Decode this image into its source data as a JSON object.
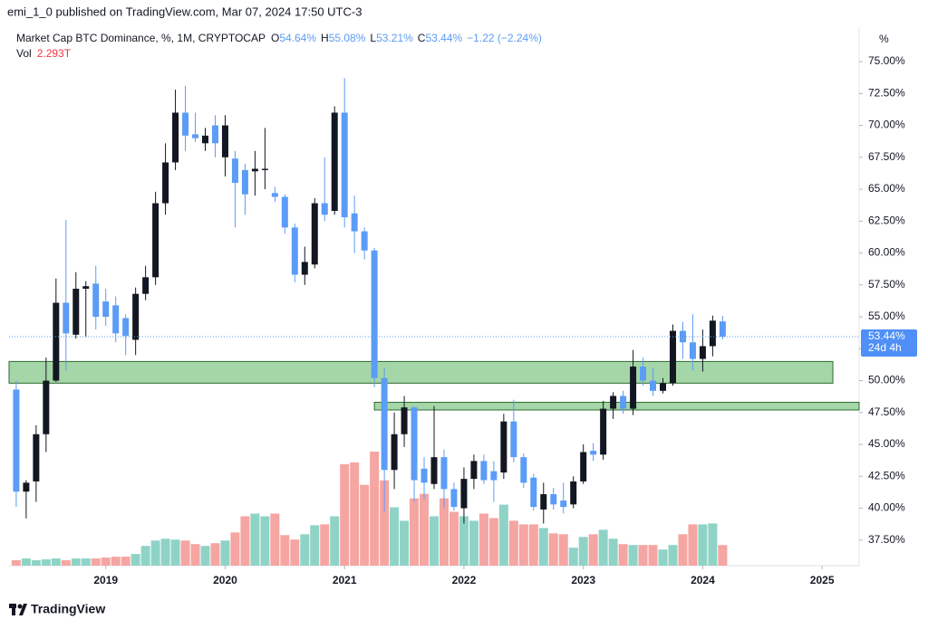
{
  "header": "emi_1_0 published on TradingView.com, Mar 07, 2024 17:50 UTC-3",
  "footer": {
    "brand": "TradingView"
  },
  "chart_data": {
    "type": "candlestick",
    "title": "Market Cap BTC Dominance, %, 1M, CRYPTOCAP",
    "legend_keys": [
      "O",
      "H",
      "L",
      "C"
    ],
    "legend_values": [
      "54.64%",
      "55.08%",
      "53.21%",
      "53.44%"
    ],
    "change": "−1.22 (−2.24%)",
    "volume_name": "Vol",
    "volume_label": "2.293T",
    "axis_unit": "%",
    "countdown": "24d 4h",
    "last_price": {
      "value": 53.44,
      "label": "53.44%"
    },
    "up_color": "#131722",
    "down_color": "#5b9cf6",
    "volume_up_color": "#8fd3c6",
    "volume_down_color": "#f5a5a2",
    "x": [
      2018.25,
      2018.3333,
      2018.4167,
      2018.5,
      2018.5833,
      2018.6667,
      2018.75,
      2018.8333,
      2018.9167,
      2019,
      2019.0833,
      2019.1667,
      2019.25,
      2019.3333,
      2019.4167,
      2019.5,
      2019.5833,
      2019.6667,
      2019.75,
      2019.8333,
      2019.9167,
      2020,
      2020.0833,
      2020.1667,
      2020.25,
      2020.3333,
      2020.4167,
      2020.5,
      2020.5833,
      2020.6667,
      2020.75,
      2020.8333,
      2020.9167,
      2021,
      2021.0833,
      2021.1667,
      2021.25,
      2021.3333,
      2021.4167,
      2021.5,
      2021.5833,
      2021.6667,
      2021.75,
      2021.8333,
      2021.9167,
      2022,
      2022.0833,
      2022.1667,
      2022.25,
      2022.3333,
      2022.4167,
      2022.5,
      2022.5833,
      2022.6667,
      2022.75,
      2022.8333,
      2022.9167,
      2023,
      2023.0833,
      2023.1667,
      2023.25,
      2023.3333,
      2023.4167,
      2023.5,
      2023.5833,
      2023.6667,
      2023.75,
      2023.8333,
      2023.9167,
      2024,
      2024.0833,
      2024.1667
    ],
    "open": [
      49.3,
      41.3,
      42.1,
      45.8,
      50.0,
      56.1,
      53.6,
      57.2,
      57.6,
      56.2,
      55.9,
      54.9,
      53.2,
      56.8,
      58.1,
      63.9,
      67.1,
      71.0,
      69.3,
      68.6,
      70.0,
      67.5,
      67.4,
      66.5,
      66.4,
      66.5,
      64.7,
      64.4,
      62.0,
      58.3,
      59.1,
      63.9,
      63.3,
      71.0,
      63.1,
      61.7,
      60.2,
      50.2,
      43.0,
      45.8,
      47.9,
      43.1,
      41.9,
      44.0,
      41.5,
      40.0,
      42.3,
      43.7,
      42.9,
      42.8,
      46.8,
      44.0,
      42.4,
      39.9,
      41.1,
      40.6,
      40.3,
      42.1,
      44.5,
      44.2,
      47.8,
      48.8,
      47.8,
      51.1,
      50.0,
      49.2,
      49.8,
      53.9,
      53.0,
      51.7,
      52.7,
      54.64
    ],
    "high": [
      50.0,
      42.2,
      46.5,
      51.8,
      58.0,
      62.6,
      58.5,
      57.8,
      59.0,
      57.2,
      56.6,
      55.2,
      57.3,
      59.0,
      64.8,
      68.6,
      72.8,
      73.1,
      71.0,
      69.8,
      70.8,
      70.8,
      68.0,
      67.0,
      68.0,
      69.8,
      65.2,
      64.6,
      62.3,
      60.5,
      64.3,
      67.5,
      71.5,
      73.7,
      64.5,
      62.0,
      60.4,
      51.0,
      47.5,
      48.8,
      48.0,
      44.0,
      48.0,
      44.6,
      42.0,
      43.2,
      44.2,
      44.2,
      43.7,
      47.4,
      48.5,
      44.3,
      42.7,
      42.0,
      41.6,
      42.0,
      42.5,
      45.0,
      45.1,
      48.4,
      49.1,
      49.2,
      52.4,
      51.8,
      51.0,
      50.2,
      54.4,
      54.6,
      55.2,
      54.0,
      55.1,
      55.08
    ],
    "low": [
      40.1,
      39.2,
      40.5,
      44.4,
      49.9,
      50.8,
      53.3,
      53.4,
      54.0,
      54.3,
      53.0,
      52.0,
      52.0,
      56.3,
      57.5,
      63.0,
      66.5,
      68.0,
      68.7,
      68.0,
      67.5,
      66.0,
      62.0,
      63.0,
      64.5,
      65.0,
      64.0,
      61.5,
      57.7,
      57.5,
      58.8,
      62.5,
      63.0,
      62.0,
      60.0,
      59.5,
      49.5,
      39.7,
      41.5,
      44.8,
      40.5,
      40.7,
      41.5,
      40.0,
      39.8,
      38.8,
      41.5,
      41.9,
      40.5,
      42.3,
      43.6,
      41.6,
      39.8,
      38.8,
      39.9,
      39.6,
      40.0,
      41.9,
      43.7,
      43.8,
      47.0,
      47.4,
      47.3,
      49.6,
      48.8,
      49.0,
      49.6,
      51.7,
      50.8,
      50.7,
      51.9,
      53.21
    ],
    "close": [
      41.3,
      42.0,
      45.8,
      50.0,
      56.1,
      53.7,
      57.2,
      57.4,
      55.0,
      55.0,
      53.7,
      53.5,
      56.8,
      58.1,
      63.9,
      67.1,
      71.0,
      69.2,
      69.0,
      69.2,
      68.6,
      70.0,
      65.5,
      64.6,
      66.6,
      66.6,
      64.4,
      62.0,
      58.3,
      59.3,
      63.9,
      63.0,
      71.0,
      62.8,
      61.7,
      60.2,
      50.2,
      43.0,
      45.8,
      47.9,
      42.2,
      42.0,
      44.0,
      41.5,
      40.1,
      42.3,
      43.7,
      42.2,
      42.2,
      46.8,
      44.0,
      42.0,
      40.1,
      41.1,
      40.3,
      40.1,
      42.1,
      44.4,
      44.2,
      47.8,
      48.8,
      47.8,
      51.1,
      50.0,
      49.2,
      49.8,
      53.9,
      53.0,
      51.7,
      52.7,
      54.7,
      53.44
    ],
    "volume": [
      0.6,
      0.8,
      0.6,
      0.7,
      0.8,
      0.6,
      0.8,
      0.8,
      0.8,
      0.9,
      1.0,
      1.0,
      1.3,
      2.2,
      2.8,
      3.0,
      2.9,
      2.8,
      2.4,
      2.2,
      2.5,
      2.8,
      3.7,
      5.5,
      5.8,
      5.5,
      5.8,
      3.4,
      2.9,
      3.5,
      4.5,
      4.6,
      5.5,
      11.3,
      11.5,
      9.0,
      12.7,
      9.5,
      6.5,
      5.0,
      7.5,
      8.0,
      5.5,
      7.5,
      6.0,
      5.5,
      5.0,
      5.8,
      5.3,
      6.8,
      5.0,
      4.6,
      4.6,
      4.2,
      3.6,
      3.5,
      2.0,
      3.2,
      3.5,
      4.0,
      3.0,
      2.4,
      2.3,
      2.3,
      2.3,
      1.8,
      2.3,
      3.5,
      4.6,
      4.6,
      4.7,
      2.293
    ],
    "vlim": [
      0,
      60
    ],
    "zones": [
      {
        "x0": 2018.19,
        "x1": 2025.09,
        "y0": 49.8,
        "y1": 51.5,
        "color": "#a5d6a7"
      },
      {
        "x0": 2021.25,
        "x1": 2025.31,
        "y0": 47.7,
        "y1": 48.3,
        "color": "#a5d6a7"
      }
    ],
    "xlim": [
      2018.19,
      2025.31
    ],
    "xticks": [
      2019,
      2020,
      2021,
      2022,
      2023,
      2024,
      2025
    ],
    "ylim": [
      35.5,
      77.7
    ],
    "yticks": [
      {
        "value": 37.5,
        "label": "37.50%"
      },
      {
        "value": 40,
        "label": "40.00%"
      },
      {
        "value": 42.5,
        "label": "42.50%"
      },
      {
        "value": 45,
        "label": "45.00%"
      },
      {
        "value": 47.5,
        "label": "47.50%"
      },
      {
        "value": 50,
        "label": "50.00%"
      },
      {
        "value": 52.5,
        "label": "52.50%"
      },
      {
        "value": 55,
        "label": "55.00%"
      },
      {
        "value": 57.5,
        "label": "57.50%"
      },
      {
        "value": 60,
        "label": "60.00%"
      },
      {
        "value": 62.5,
        "label": "62.50%"
      },
      {
        "value": 65,
        "label": "65.00%"
      },
      {
        "value": 67.5,
        "label": "67.50%"
      },
      {
        "value": 70,
        "label": "70.00%"
      },
      {
        "value": 72.5,
        "label": "72.50%"
      },
      {
        "value": 75,
        "label": "75.00%"
      }
    ]
  }
}
